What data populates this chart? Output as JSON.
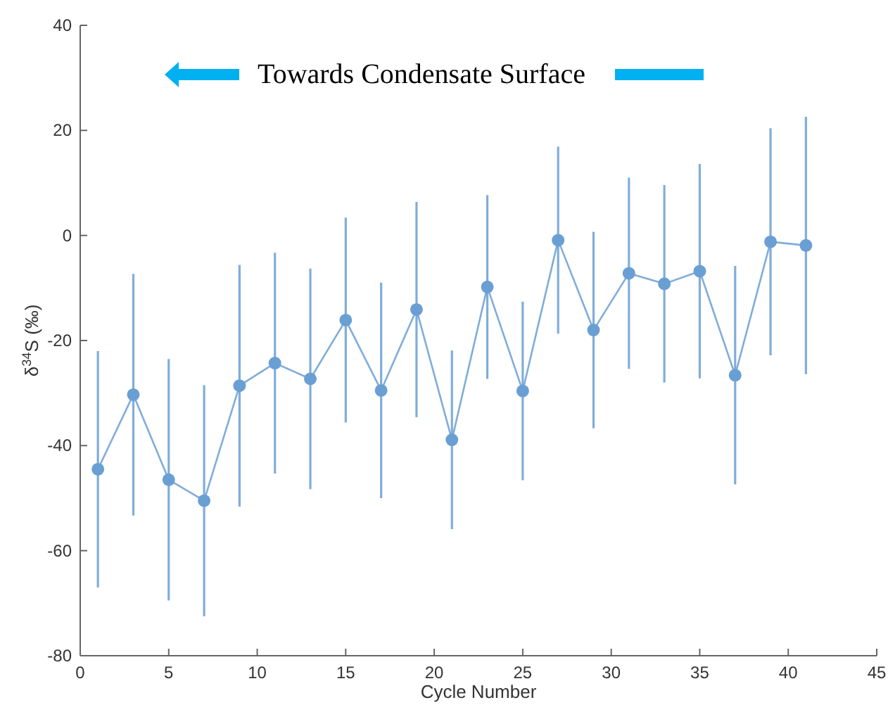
{
  "chart_data": {
    "type": "line",
    "xlabel": "Cycle Number",
    "ylabel": "δ$^{34}$S (‰)",
    "x": [
      1,
      3,
      5,
      7,
      9,
      11,
      13,
      15,
      17,
      19,
      21,
      23,
      25,
      27,
      29,
      31,
      33,
      35,
      37,
      39,
      41
    ],
    "series": [
      {
        "color": "#6a9fd4",
        "values": [
          -44.5,
          -30.3,
          -46.5,
          -50.5,
          -28.6,
          -24.3,
          -27.3,
          -16.1,
          -29.5,
          -14.1,
          -38.9,
          -9.8,
          -29.6,
          -0.9,
          -18,
          -7.2,
          -9.2,
          -6.8,
          -26.6,
          -1.2,
          -1.9
        ],
        "errors": [
          22.5,
          23,
          23,
          22,
          23,
          21,
          21,
          19.5,
          20.5,
          20.5,
          17,
          17.5,
          17,
          17.8,
          18.7,
          18.2,
          18.8,
          20.4,
          20.8,
          21.6,
          24.5
        ]
      }
    ],
    "xlim": [
      0,
      45
    ],
    "xticks": [
      0,
      5,
      10,
      15,
      20,
      25,
      30,
      35,
      40,
      45
    ],
    "ylim": [
      -80,
      40
    ],
    "yticks": [
      -80,
      -60,
      -40,
      -20,
      0,
      20,
      40
    ],
    "grid": false,
    "marker": "circle",
    "line_style": "solid",
    "annotations": [
      "Towards Condensate Surface"
    ]
  }
}
